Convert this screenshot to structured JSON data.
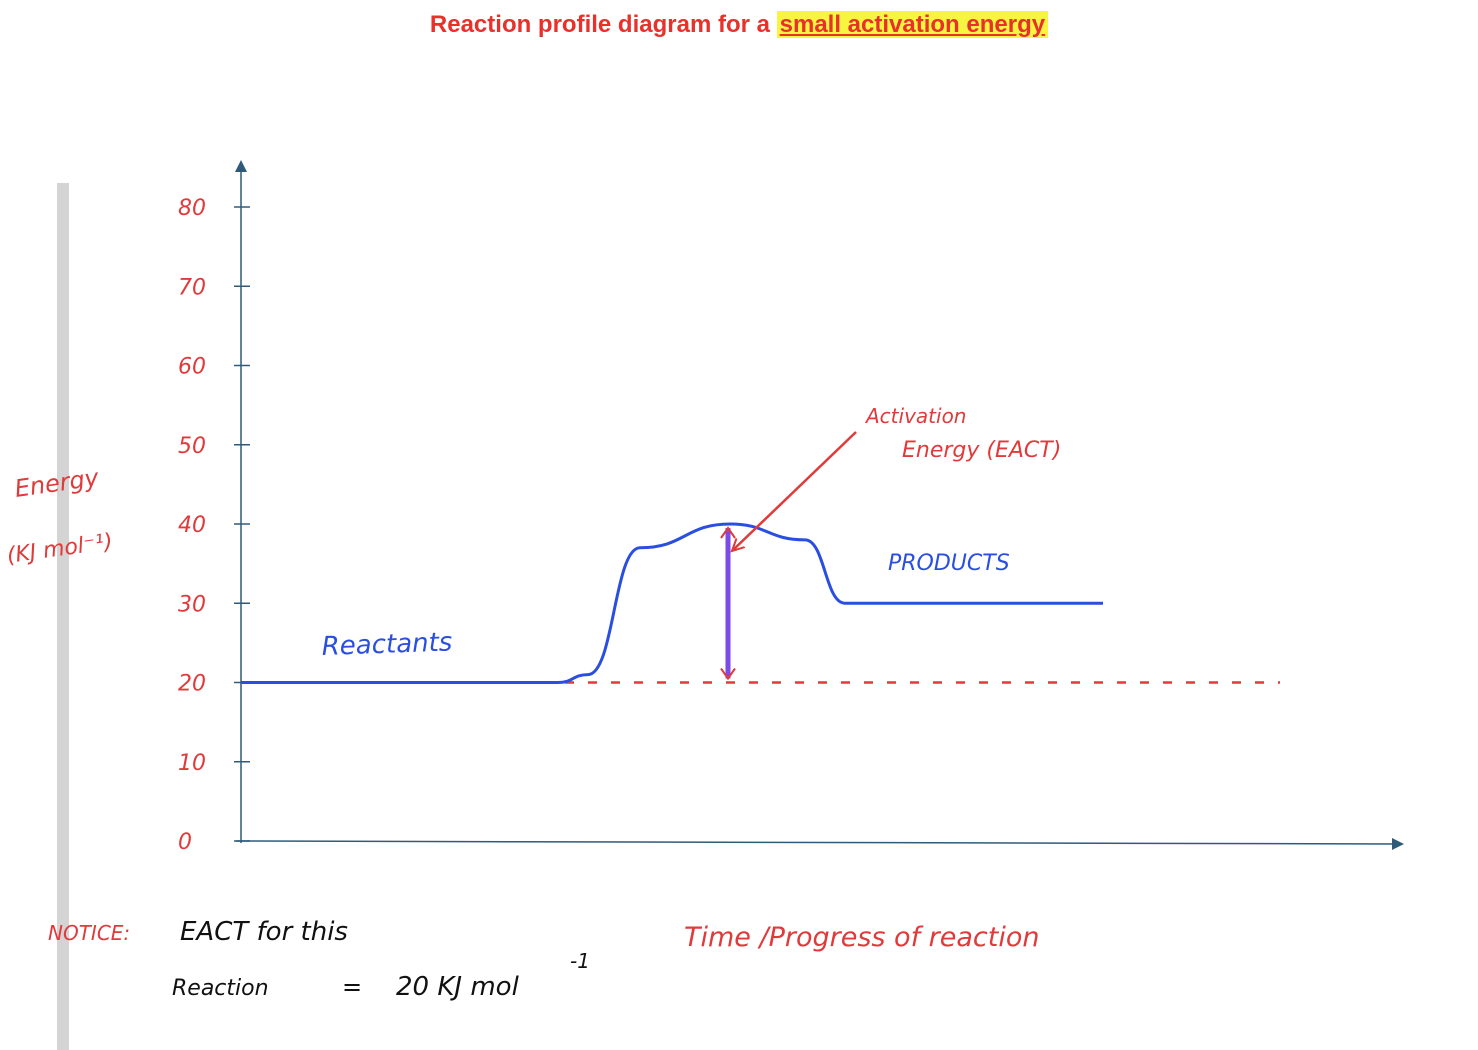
{
  "title": {
    "prefix": "Reaction profile diagram for a ",
    "highlight": "small activation energy"
  },
  "colors": {
    "title": "#e8312a",
    "highlight": "#f7f540",
    "axis": "#2f5b7a",
    "annotation": "#e03a3a",
    "curve": "#2a4fe0",
    "activation_arrow": "#7b4be8",
    "note": "#111111"
  },
  "chart_data": {
    "type": "line",
    "xlabel": "Time /Progress of reaction",
    "ylabel": [
      "Energy",
      "(KJ mol⁻¹)"
    ],
    "ylim": [
      0,
      80
    ],
    "yticks": [
      0,
      10,
      20,
      30,
      40,
      50,
      60,
      70,
      80
    ],
    "ytick_labels": [
      "0",
      "10",
      "20",
      "30",
      "40",
      "50",
      "60",
      "70",
      "80"
    ],
    "grid": false,
    "series": [
      {
        "x": [
          0,
          1,
          2,
          3,
          4,
          5,
          6,
          7,
          8,
          9,
          10
        ],
        "y": [
          20,
          20,
          20,
          21,
          37,
          40,
          38,
          30,
          30,
          30,
          30
        ]
      }
    ],
    "reference_line": {
      "y": 20,
      "style": "dashed"
    },
    "activation_arrow": {
      "from": 20,
      "to": 40
    },
    "labels": {
      "reactants": "Reactants",
      "products": "PRODUCTS",
      "activation": [
        "Activation",
        "Energy (EACT)"
      ]
    }
  },
  "note": {
    "label": "NOTICE:",
    "line1": "EACT for this",
    "line2_left": "Reaction",
    "equals": "=",
    "value": "20 KJ mol",
    "superscript": "-1"
  }
}
